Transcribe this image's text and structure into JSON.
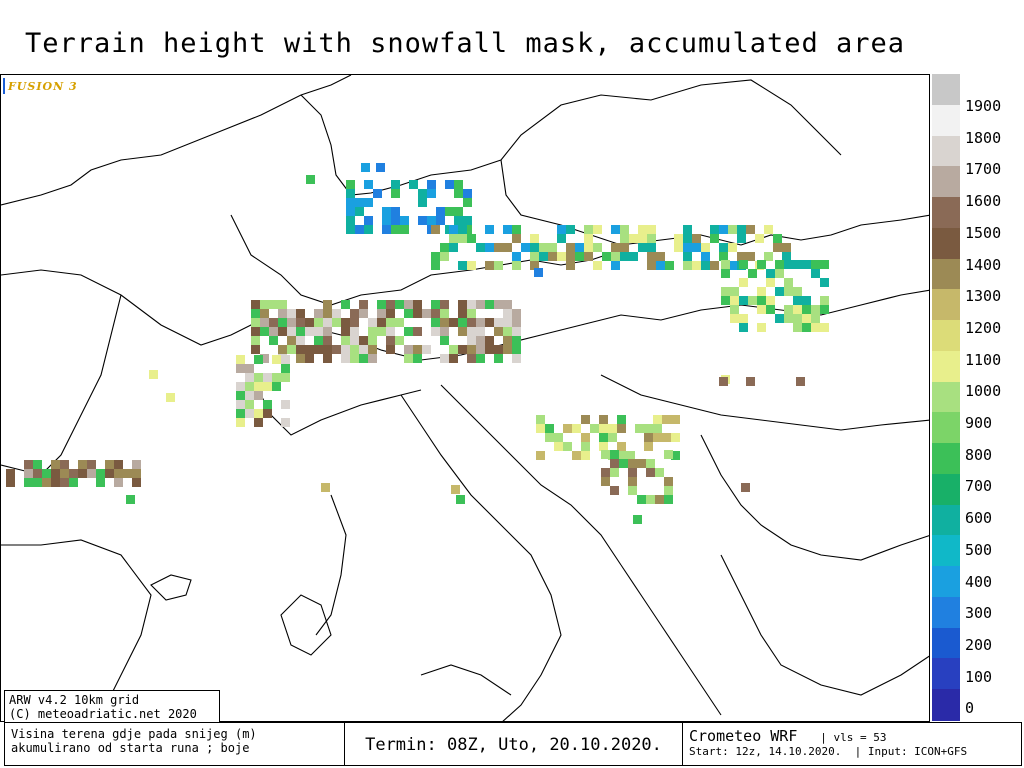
{
  "title": "Terrain height with snowfall mask, accumulated area",
  "badge": "FUSION 3",
  "legend": {
    "labels": [
      "1900",
      "1800",
      "1700",
      "1600",
      "1500",
      "1400",
      "1300",
      "1200",
      "1100",
      "1000",
      "900",
      "800",
      "700",
      "600",
      "500",
      "400",
      "300",
      "200",
      "100",
      "0"
    ],
    "colors": [
      "#c8c8c8",
      "#f2f2f2",
      "#d9d4d0",
      "#b8aaa0",
      "#8a6a56",
      "#7a5a40",
      "#9c8a55",
      "#c6b86a",
      "#dcdc78",
      "#e8ef8c",
      "#a8e080",
      "#7cd468",
      "#3cc058",
      "#18b068",
      "#10b0a0",
      "#10b8c8",
      "#1aa0e0",
      "#2080e0",
      "#1a5ad0",
      "#2840c0",
      "#2a2aa8"
    ]
  },
  "credits": {
    "line1": "ARW v4.2  10km grid",
    "line2": "(C) meteoadriatic.net 2020"
  },
  "footer": {
    "desc1": "Visina terena gdje pada snijeg (m)",
    "desc2": "akumulirano od starta runa ; boje",
    "time": "Termin: 08Z, Uto, 20.10.2020.",
    "model": "Crometeo WRF",
    "vls": "vls = 53",
    "start": "Start: 12z, 14.10.2020.",
    "input": "Input: ICON+GFS"
  },
  "map": {
    "region": "Central and Southern Europe",
    "layers": [
      "coastlines",
      "country-borders",
      "snowfall-mask"
    ]
  }
}
